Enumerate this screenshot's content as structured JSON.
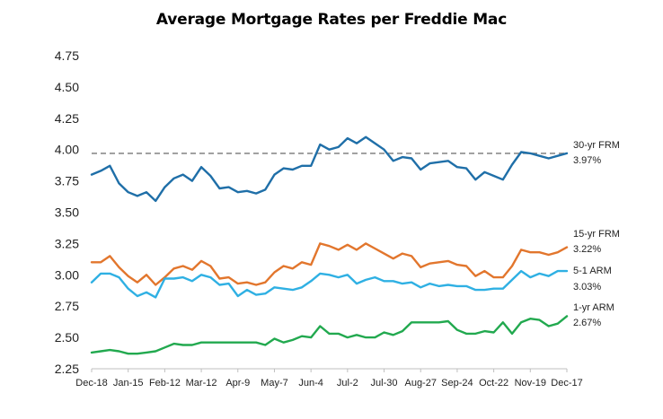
{
  "chart_data": {
    "type": "line",
    "title": "Average Mortgage Rates per Freddie Mac",
    "xlabel": "",
    "ylabel": "",
    "ylim": [
      2.25,
      4.75
    ],
    "yticks": [
      "4.75",
      "4.50",
      "4.25",
      "4.00",
      "3.75",
      "3.50",
      "3.25",
      "3.00",
      "2.75",
      "2.50",
      "2.25"
    ],
    "ytick_values": [
      4.75,
      4.5,
      4.25,
      4.0,
      3.75,
      3.5,
      3.25,
      3.0,
      2.75,
      2.5,
      2.25
    ],
    "xtick_labels": [
      "Dec-18",
      "Jan-15",
      "Feb-12",
      "Mar-12",
      "Apr-9",
      "May-7",
      "Jun-4",
      "Jul-2",
      "Jul-30",
      "Aug-27",
      "Sep-24",
      "Oct-22",
      "Nov-19",
      "Dec-17"
    ],
    "xtick_indices": [
      0,
      4,
      8,
      12,
      16,
      20,
      24,
      28,
      32,
      36,
      40,
      44,
      48,
      52
    ],
    "grid": false,
    "reference_line": {
      "value": 3.97,
      "style": "dashed",
      "color": "#8c8c8c"
    },
    "series": [
      {
        "name": "30-yr FRM",
        "end_label": "3.97%",
        "color": "#1f6fa8",
        "values": [
          3.8,
          3.83,
          3.87,
          3.73,
          3.66,
          3.63,
          3.66,
          3.59,
          3.7,
          3.77,
          3.8,
          3.75,
          3.86,
          3.79,
          3.69,
          3.7,
          3.66,
          3.67,
          3.65,
          3.68,
          3.8,
          3.85,
          3.84,
          3.87,
          3.87,
          4.04,
          4.0,
          4.02,
          4.09,
          4.05,
          4.1,
          4.05,
          4.0,
          3.91,
          3.94,
          3.93,
          3.84,
          3.89,
          3.9,
          3.91,
          3.86,
          3.85,
          3.76,
          3.82,
          3.79,
          3.76,
          3.88,
          3.98,
          3.97,
          3.95,
          3.93,
          3.95,
          3.97
        ]
      },
      {
        "name": "15-yr FRM",
        "end_label": "3.22%",
        "color": "#e2762d",
        "values": [
          3.1,
          3.1,
          3.15,
          3.06,
          2.99,
          2.94,
          3.0,
          2.92,
          2.98,
          3.05,
          3.07,
          3.04,
          3.11,
          3.07,
          2.97,
          2.98,
          2.93,
          2.94,
          2.92,
          2.94,
          3.02,
          3.07,
          3.05,
          3.1,
          3.08,
          3.25,
          3.23,
          3.2,
          3.24,
          3.2,
          3.25,
          3.21,
          3.17,
          3.13,
          3.17,
          3.15,
          3.06,
          3.09,
          3.1,
          3.11,
          3.08,
          3.07,
          2.99,
          3.03,
          2.98,
          2.98,
          3.07,
          3.2,
          3.18,
          3.18,
          3.16,
          3.18,
          3.22
        ]
      },
      {
        "name": "5-1 ARM",
        "end_label": "3.03%",
        "color": "#2fb0e3",
        "values": [
          2.94,
          3.01,
          3.01,
          2.98,
          2.89,
          2.83,
          2.86,
          2.82,
          2.97,
          2.97,
          2.98,
          2.95,
          3.0,
          2.98,
          2.92,
          2.93,
          2.83,
          2.88,
          2.84,
          2.85,
          2.9,
          2.89,
          2.88,
          2.9,
          2.95,
          3.01,
          3.0,
          2.98,
          3.0,
          2.93,
          2.96,
          2.98,
          2.95,
          2.95,
          2.93,
          2.94,
          2.9,
          2.93,
          2.91,
          2.92,
          2.91,
          2.91,
          2.88,
          2.88,
          2.89,
          2.89,
          2.96,
          3.03,
          2.98,
          3.01,
          2.99,
          3.03,
          3.03
        ]
      },
      {
        "name": "1-yr ARM",
        "end_label": "2.67%",
        "color": "#22a94f",
        "values": [
          2.38,
          2.39,
          2.4,
          2.39,
          2.37,
          2.37,
          2.38,
          2.39,
          2.42,
          2.45,
          2.44,
          2.44,
          2.46,
          2.46,
          2.46,
          2.46,
          2.46,
          2.46,
          2.46,
          2.44,
          2.49,
          2.46,
          2.48,
          2.51,
          2.5,
          2.59,
          2.53,
          2.53,
          2.5,
          2.52,
          2.5,
          2.5,
          2.54,
          2.52,
          2.55,
          2.62,
          2.62,
          2.62,
          2.62,
          2.63,
          2.56,
          2.53,
          2.53,
          2.55,
          2.54,
          2.62,
          2.53,
          2.62,
          2.65,
          2.64,
          2.59,
          2.61,
          2.67
        ]
      }
    ]
  }
}
